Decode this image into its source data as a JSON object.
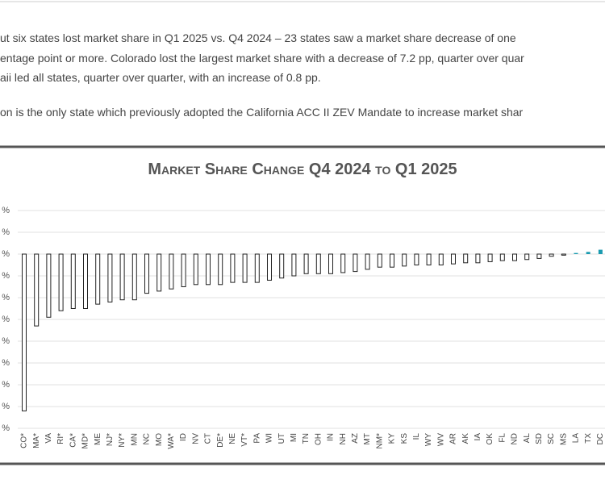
{
  "page": {
    "paragraphs": [
      "ut six states lost market share in Q1 2025 vs. Q4 2024 – 23 states saw a market share decrease of one",
      "entage point or more. Colorado lost the largest market share with a decrease of 7.2 pp, quarter over quar",
      "aii led all states, quarter over quarter, with an increase of 0.8 pp.",
      "on is the only state which previously adopted the California ACC II ZEV Mandate to increase market shar"
    ]
  },
  "chart_data": {
    "type": "bar",
    "title": "Market Share Change Q4 2024 to Q1 2025",
    "categories": [
      "CO*",
      "MA*",
      "VA",
      "RI*",
      "CA*",
      "MD*",
      "ME",
      "NJ*",
      "NY*",
      "MN",
      "NC",
      "MO",
      "WA*",
      "ID",
      "NV",
      "CT",
      "DE*",
      "NE",
      "VT*",
      "PA",
      "WI",
      "UT",
      "MI",
      "TN",
      "OH",
      "IN",
      "NH",
      "AZ",
      "MT",
      "NM*",
      "KY",
      "KS",
      "IL",
      "WY",
      "WV",
      "AR",
      "AK",
      "IA",
      "OK",
      "FL",
      "ND",
      "AL",
      "SD",
      "SC",
      "MS",
      "LA",
      "TX",
      "DC"
    ],
    "values": [
      -7.2,
      -3.3,
      -2.9,
      -2.6,
      -2.5,
      -2.5,
      -2.3,
      -2.2,
      -2.1,
      -2.1,
      -1.8,
      -1.7,
      -1.6,
      -1.5,
      -1.4,
      -1.4,
      -1.4,
      -1.3,
      -1.3,
      -1.3,
      -1.2,
      -1.1,
      -1.0,
      -0.9,
      -0.9,
      -0.9,
      -0.85,
      -0.8,
      -0.7,
      -0.6,
      -0.6,
      -0.55,
      -0.5,
      -0.5,
      -0.5,
      -0.45,
      -0.4,
      -0.4,
      -0.35,
      -0.3,
      -0.3,
      -0.25,
      -0.2,
      -0.1,
      -0.05,
      0.05,
      0.1,
      0.2
    ],
    "color": "#ffffff",
    "edge_color": "#222222",
    "positive_color": "#1a9bb0",
    "ylim": [
      -8,
      2
    ],
    "yticks": [
      {
        "value": 2,
        "label": "%"
      },
      {
        "value": 1,
        "label": "%"
      },
      {
        "value": 0,
        "label": "%"
      },
      {
        "value": -1,
        "label": "%"
      },
      {
        "value": -2,
        "label": "%"
      },
      {
        "value": -3,
        "label": "%"
      },
      {
        "value": -4,
        "label": "%"
      },
      {
        "value": -5,
        "label": "%"
      },
      {
        "value": -6,
        "label": "%"
      },
      {
        "value": -7,
        "label": "%"
      },
      {
        "value": -8,
        "label": "%"
      }
    ],
    "grid": true
  }
}
